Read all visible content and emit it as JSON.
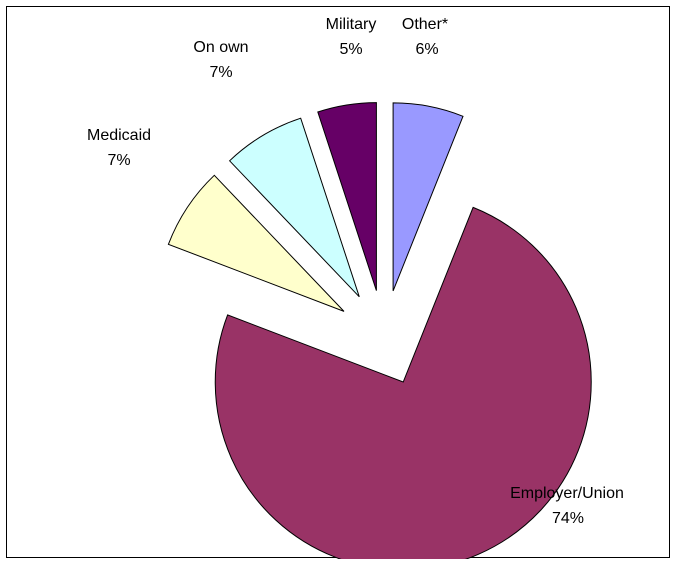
{
  "chart_data": {
    "type": "pie",
    "exploded": true,
    "slices": [
      {
        "name": "Other*",
        "value": 6,
        "label": "Other*",
        "pct_label": "6%",
        "color": "#9999FF"
      },
      {
        "name": "Employer/Union",
        "value": 74,
        "label": "Employer/Union",
        "pct_label": "74%",
        "color": "#993366"
      },
      {
        "name": "Medicaid",
        "value": 7,
        "label": "Medicaid",
        "pct_label": "7%",
        "color": "#FFFFCC"
      },
      {
        "name": "On own",
        "value": 7,
        "label": "On own",
        "pct_label": "7%",
        "color": "#CCFFFF"
      },
      {
        "name": "Military",
        "value": 5,
        "label": "Military",
        "pct_label": "5%",
        "color": "#660066"
      }
    ]
  }
}
